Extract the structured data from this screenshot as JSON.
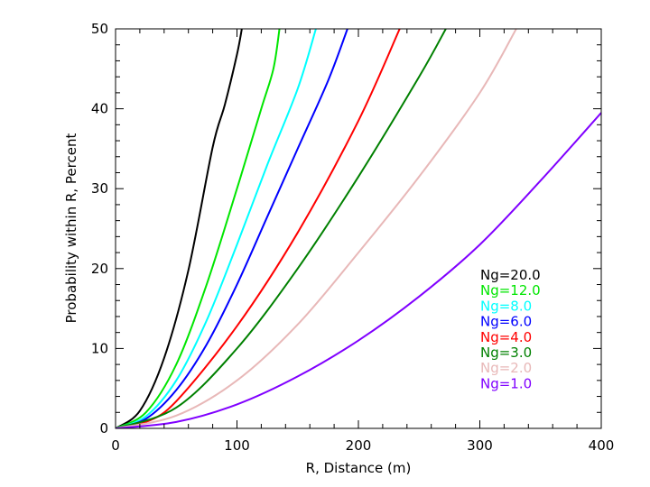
{
  "chart_data": {
    "type": "line",
    "title": "",
    "xlabel": "R, Distance (m)",
    "ylabel": "Probability within R, Percent",
    "xlim": [
      0,
      400
    ],
    "ylim": [
      0,
      50
    ],
    "x_ticks": [
      0,
      100,
      200,
      300,
      400
    ],
    "y_ticks": [
      0,
      10,
      20,
      30,
      40,
      50
    ],
    "x_tick_labels": [
      "0",
      "100",
      "200",
      "300",
      "400"
    ],
    "y_tick_labels": [
      "0",
      "10",
      "20",
      "30",
      "40",
      "50"
    ],
    "grid": false,
    "legend_position": "right",
    "series": [
      {
        "name": "Ng=20.0",
        "color": "#000000",
        "x": [
          0,
          20,
          40,
          60,
          80,
          90,
          100,
          104
        ],
        "y": [
          0,
          2.2,
          8.8,
          19.8,
          35.2,
          40.5,
          46.8,
          50
        ]
      },
      {
        "name": "Ng=12.0",
        "color": "#00e600",
        "x": [
          0,
          25,
          50,
          75,
          100,
          120,
          130,
          135
        ],
        "y": [
          0,
          2.0,
          8.0,
          18.0,
          30.0,
          40.0,
          45.0,
          50
        ]
      },
      {
        "name": "Ng=8.0",
        "color": "#00ffff",
        "x": [
          0,
          25,
          50,
          75,
          100,
          125,
          150,
          165
        ],
        "y": [
          0,
          1.5,
          6.0,
          13.5,
          23.0,
          33.0,
          42.5,
          50
        ]
      },
      {
        "name": "Ng=6.0",
        "color": "#0000ff",
        "x": [
          0,
          25,
          50,
          75,
          100,
          125,
          150,
          175,
          191
        ],
        "y": [
          0,
          1.2,
          4.8,
          10.5,
          18.0,
          26.5,
          35.0,
          43.5,
          50
        ]
      },
      {
        "name": "Ng=4.0",
        "color": "#ff0000",
        "x": [
          0,
          25,
          50,
          100,
          150,
          200,
          234
        ],
        "y": [
          0,
          0.8,
          3.4,
          12.8,
          24.5,
          38.5,
          50
        ]
      },
      {
        "name": "Ng=3.0",
        "color": "#008000",
        "x": [
          0,
          50,
          100,
          150,
          200,
          250,
          272
        ],
        "y": [
          0,
          2.6,
          10.0,
          20.0,
          31.5,
          44.0,
          50
        ]
      },
      {
        "name": "Ng=2.0",
        "color": "#e8b8b8",
        "x": [
          0,
          50,
          100,
          150,
          200,
          250,
          300,
          330
        ],
        "y": [
          0,
          1.6,
          6.0,
          13.0,
          22.0,
          31.5,
          42.0,
          50
        ]
      },
      {
        "name": "Ng=1.0",
        "color": "#8000ff",
        "x": [
          0,
          50,
          100,
          150,
          200,
          250,
          300,
          350,
          400
        ],
        "y": [
          0,
          0.8,
          3.0,
          6.5,
          11.0,
          16.5,
          23.0,
          31.0,
          39.5
        ]
      }
    ]
  }
}
